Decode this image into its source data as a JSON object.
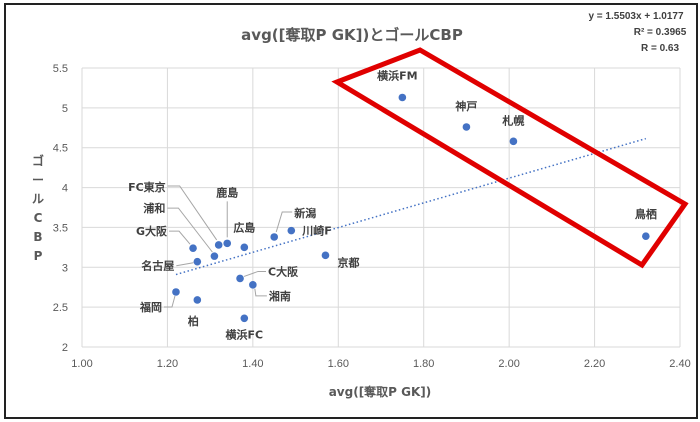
{
  "chart_data": {
    "type": "scatter",
    "title": "avg([奪取P GK])とゴールCBP",
    "xlabel": "avg([奪取P GK])",
    "ylabel": "ゴールCBP",
    "ylabel_chars": [
      "ゴ",
      "ー",
      "ル",
      "C",
      "B",
      "P"
    ],
    "xlim": [
      1.0,
      2.4
    ],
    "ylim": [
      2.0,
      5.5
    ],
    "x_ticks": [
      "1.00",
      "1.20",
      "1.40",
      "1.60",
      "1.80",
      "2.00",
      "2.20",
      "2.40"
    ],
    "x_tick_values": [
      1.0,
      1.2,
      1.4,
      1.6,
      1.8,
      2.0,
      2.2,
      2.4
    ],
    "y_ticks": [
      "2",
      "2.5",
      "3",
      "3.5",
      "4",
      "4.5",
      "5",
      "5.5"
    ],
    "y_tick_values": [
      2,
      2.5,
      3,
      3.5,
      4,
      4.5,
      5,
      5.5
    ],
    "grid": true,
    "marker_color": "#4472C4",
    "highlight_color": "#E00000",
    "points": [
      {
        "label": "横浜FM",
        "x": 1.75,
        "y": 5.13
      },
      {
        "label": "神戸",
        "x": 1.9,
        "y": 4.76
      },
      {
        "label": "札幌",
        "x": 2.01,
        "y": 4.58
      },
      {
        "label": "鳥栖",
        "x": 2.32,
        "y": 3.39
      },
      {
        "label": "川崎F",
        "x": 1.49,
        "y": 3.46
      },
      {
        "label": "新潟",
        "x": 1.45,
        "y": 3.38
      },
      {
        "label": "京都",
        "x": 1.57,
        "y": 3.15
      },
      {
        "label": "広島",
        "x": 1.38,
        "y": 3.25
      },
      {
        "label": "鹿島",
        "x": 1.34,
        "y": 3.3
      },
      {
        "label": "FC東京",
        "x": 1.32,
        "y": 3.28
      },
      {
        "label": "浦和",
        "x": 1.31,
        "y": 3.14
      },
      {
        "label": "G大阪",
        "x": 1.26,
        "y": 3.24
      },
      {
        "label": "名古屋",
        "x": 1.27,
        "y": 3.07
      },
      {
        "label": "C大阪",
        "x": 1.37,
        "y": 2.86
      },
      {
        "label": "湘南",
        "x": 1.4,
        "y": 2.78
      },
      {
        "label": "福岡",
        "x": 1.22,
        "y": 2.69
      },
      {
        "label": "柏",
        "x": 1.27,
        "y": 2.59
      },
      {
        "label": "横浜FC",
        "x": 1.38,
        "y": 2.36
      }
    ],
    "trendline": {
      "type": "linear",
      "slope": 1.5503,
      "intercept": 1.0177,
      "x_range": [
        1.22,
        2.32
      ],
      "equation": "y = 1.5503x + 1.0177",
      "r_squared_label": "R² = 0.3965",
      "r_label": "R = 0.63"
    }
  }
}
